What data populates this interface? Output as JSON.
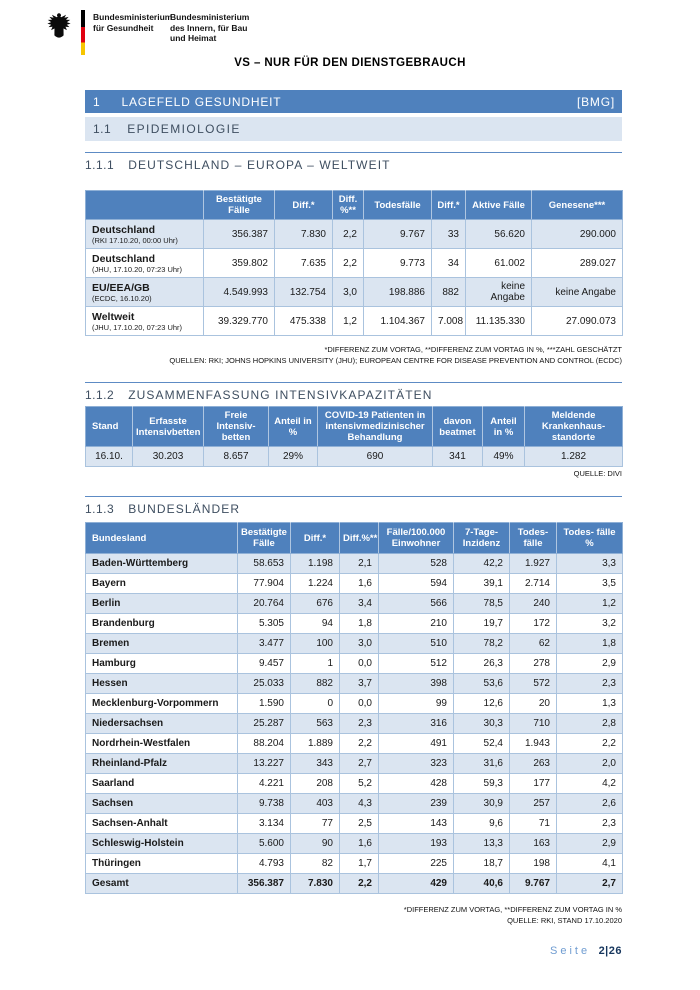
{
  "colors": {
    "accent": "#4f81bd",
    "row_alt": "#dbe5f1",
    "heading_text": "#3e4e60",
    "footer_label": "#6f9cd1",
    "footer_page": "#17375e",
    "flag_black": "#000000",
    "flag_red": "#e1000f",
    "flag_gold": "#f6c500"
  },
  "header": {
    "eagle_icon": "bundesadler-federal-eagle",
    "ministry_health_lines": [
      "Bundesministerium",
      "für Gesundheit"
    ],
    "ministry_interior_lines": [
      "Bundesministerium",
      "des Innern, für Bau",
      "und Heimat"
    ],
    "classification": "VS – NUR FÜR DEN DIENSTGEBRAUCH"
  },
  "sections": {
    "s1": {
      "number": "1",
      "title": "LAGEFELD GESUNDHEIT",
      "tag": "[BMG]"
    },
    "s11": {
      "number": "1.1",
      "title": "EPIDEMIOLOGIE"
    },
    "s111": {
      "number": "1.1.1",
      "title": "DEUTSCHLAND – EUROPA – WELTWEIT"
    },
    "s112": {
      "number": "1.1.2",
      "title": "ZUSAMMENFASSUNG INTENSIVKAPAZITÄTEN"
    },
    "s113": {
      "number": "1.1.3",
      "title": "BUNDESLÄNDER"
    }
  },
  "table_world": {
    "columns": [
      "",
      "Bestätigte Fälle",
      "Diff.*",
      "Diff. %**",
      "Todesfälle",
      "Diff.*",
      "Aktive Fälle",
      "Genesene***"
    ],
    "rows": [
      {
        "label": "Deutschland",
        "sublabel": "(RKI 17.10.20, 00:00 Uhr)",
        "values": [
          "356.387",
          "7.830",
          "2,2",
          "9.767",
          "33",
          "56.620",
          "290.000"
        ]
      },
      {
        "label": "Deutschland",
        "sublabel": "(JHU, 17.10.20, 07:23 Uhr)",
        "values": [
          "359.802",
          "7.635",
          "2,2",
          "9.773",
          "34",
          "61.002",
          "289.027"
        ]
      },
      {
        "label": "EU/EEA/GB",
        "sublabel": "(ECDC, 16.10.20)",
        "values": [
          "4.549.993",
          "132.754",
          "3,0",
          "198.886",
          "882",
          "keine Angabe",
          "keine Angabe"
        ]
      },
      {
        "label": "Weltweit",
        "sublabel": "(JHU, 17.10.20, 07:23 Uhr)",
        "values": [
          "39.329.770",
          "475.338",
          "1,2",
          "1.104.367",
          "7.008",
          "11.135.330",
          "27.090.073"
        ]
      }
    ],
    "footnotes": [
      "*DIFFERENZ ZUM VORTAG, **DIFFERENZ ZUM VORTAG IN %, ***ZAHL GESCHÄTZT",
      "QUELLEN: RKI; JOHNS HOPKINS UNIVERSITY (JHU); EUROPEAN CENTRE FOR DISEASE PREVENTION AND CONTROL (ECDC)"
    ]
  },
  "table_icu": {
    "columns": [
      "Stand",
      "Erfasste Intensivbetten",
      "Freie Intensiv- betten",
      "Anteil in %",
      "COVID-19 Patienten in intensivmedizinischer Behandlung",
      "davon beatmet",
      "Anteil in %",
      "Meldende Krankenhaus- standorte"
    ],
    "row": [
      "16.10.",
      "30.203",
      "8.657",
      "29%",
      "690",
      "341",
      "49%",
      "1.282"
    ],
    "source": "QUELLE: DIVI"
  },
  "table_states": {
    "columns": [
      "Bundesland",
      "Bestätigte Fälle",
      "Diff.*",
      "Diff.%**",
      "Fälle/100.000 Einwohner",
      "7-Tage-Inzidenz",
      "Todes- fälle",
      "Todes- fälle %"
    ],
    "rows": [
      {
        "name": "Baden-Württemberg",
        "values": [
          "58.653",
          "1.198",
          "2,1",
          "528",
          "42,2",
          "1.927",
          "3,3"
        ]
      },
      {
        "name": "Bayern",
        "values": [
          "77.904",
          "1.224",
          "1,6",
          "594",
          "39,1",
          "2.714",
          "3,5"
        ]
      },
      {
        "name": "Berlin",
        "values": [
          "20.764",
          "676",
          "3,4",
          "566",
          "78,5",
          "240",
          "1,2"
        ]
      },
      {
        "name": "Brandenburg",
        "values": [
          "5.305",
          "94",
          "1,8",
          "210",
          "19,7",
          "172",
          "3,2"
        ]
      },
      {
        "name": "Bremen",
        "values": [
          "3.477",
          "100",
          "3,0",
          "510",
          "78,2",
          "62",
          "1,8"
        ]
      },
      {
        "name": "Hamburg",
        "values": [
          "9.457",
          "1",
          "0,0",
          "512",
          "26,3",
          "278",
          "2,9"
        ]
      },
      {
        "name": "Hessen",
        "values": [
          "25.033",
          "882",
          "3,7",
          "398",
          "53,6",
          "572",
          "2,3"
        ]
      },
      {
        "name": "Mecklenburg-Vorpommern",
        "values": [
          "1.590",
          "0",
          "0,0",
          "99",
          "12,6",
          "20",
          "1,3"
        ]
      },
      {
        "name": "Niedersachsen",
        "values": [
          "25.287",
          "563",
          "2,3",
          "316",
          "30,3",
          "710",
          "2,8"
        ]
      },
      {
        "name": "Nordrhein-Westfalen",
        "values": [
          "88.204",
          "1.889",
          "2,2",
          "491",
          "52,4",
          "1.943",
          "2,2"
        ]
      },
      {
        "name": "Rheinland-Pfalz",
        "values": [
          "13.227",
          "343",
          "2,7",
          "323",
          "31,6",
          "263",
          "2,0"
        ]
      },
      {
        "name": "Saarland",
        "values": [
          "4.221",
          "208",
          "5,2",
          "428",
          "59,3",
          "177",
          "4,2"
        ]
      },
      {
        "name": "Sachsen",
        "values": [
          "9.738",
          "403",
          "4,3",
          "239",
          "30,9",
          "257",
          "2,6"
        ]
      },
      {
        "name": "Sachsen-Anhalt",
        "values": [
          "3.134",
          "77",
          "2,5",
          "143",
          "9,6",
          "71",
          "2,3"
        ]
      },
      {
        "name": "Schleswig-Holstein",
        "values": [
          "5.600",
          "90",
          "1,6",
          "193",
          "13,3",
          "163",
          "2,9"
        ]
      },
      {
        "name": "Thüringen",
        "values": [
          "4.793",
          "82",
          "1,7",
          "225",
          "18,7",
          "198",
          "4,1"
        ]
      }
    ],
    "total": {
      "name": "Gesamt",
      "values": [
        "356.387",
        "7.830",
        "2,2",
        "429",
        "40,6",
        "9.767",
        "2,7"
      ]
    },
    "footnotes": [
      "*DIFFERENZ ZUM VORTAG, **DIFFERENZ ZUM VORTAG IN %",
      "QUELLE: RKI, STAND 17.10.2020"
    ]
  },
  "footer": {
    "label": "Seite",
    "page": "2|26"
  }
}
